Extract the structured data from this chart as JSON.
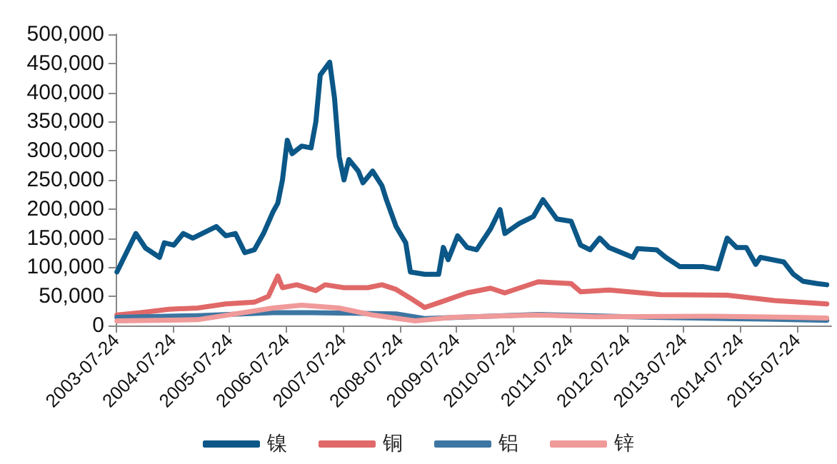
{
  "chart_data": {
    "type": "line",
    "xlim": [
      "2003-07-24",
      "2016-03-01"
    ],
    "ylim": [
      0,
      500000
    ],
    "xticks": [
      "2003-07-24",
      "2004-07-24",
      "2005-07-24",
      "2006-07-24",
      "2007-07-24",
      "2008-07-24",
      "2009-07-24",
      "2010-07-24",
      "2011-07-24",
      "2012-07-24",
      "2013-07-24",
      "2014-07-24",
      "2015-07-24"
    ],
    "yticks": [
      0,
      {
        "value": 50000,
        "label": "50,000"
      },
      {
        "value": 100000,
        "label": "100,000"
      },
      {
        "value": 150000,
        "label": "150,000"
      },
      {
        "value": 200000,
        "label": "200,000"
      },
      {
        "value": 250000,
        "label": "250,000"
      },
      {
        "value": 300000,
        "label": "300,000"
      },
      {
        "value": 350000,
        "label": "350,000"
      },
      {
        "value": 400000,
        "label": "400,000"
      },
      {
        "value": 450000,
        "label": "450,000"
      },
      {
        "value": 500000,
        "label": "500,000"
      }
    ],
    "grid": false,
    "legend": "bottom",
    "marker": "none",
    "line_style": "solid",
    "series": [
      {
        "name": "镍",
        "color": "#0b5787",
        "x": [
          "2003-08",
          "2003-12",
          "2004-02",
          "2004-05",
          "2004-06",
          "2004-08",
          "2004-10",
          "2004-12",
          "2005-05",
          "2005-07",
          "2005-09",
          "2005-11",
          "2006-01",
          "2006-03",
          "2006-05",
          "2006-06",
          "2006-07",
          "2006-08",
          "2006-09",
          "2006-11",
          "2007-01",
          "2007-02",
          "2007-03",
          "2007-05",
          "2007-06",
          "2007-07",
          "2007-08",
          "2007-09",
          "2007-11",
          "2007-12",
          "2008-02",
          "2008-04",
          "2008-05",
          "2008-07",
          "2008-09",
          "2008-10",
          "2009-01",
          "2009-04",
          "2009-05",
          "2009-06",
          "2009-08",
          "2009-10",
          "2009-12",
          "2010-03",
          "2010-05",
          "2010-06",
          "2010-09",
          "2010-12",
          "2011-02",
          "2011-05",
          "2011-08",
          "2011-10",
          "2011-12",
          "2012-02",
          "2012-04",
          "2012-09",
          "2012-10",
          "2013-02",
          "2013-04",
          "2013-07",
          "2013-12",
          "2014-03",
          "2014-05",
          "2014-07",
          "2014-09",
          "2014-11",
          "2014-12",
          "2015-05",
          "2015-07",
          "2015-09",
          "2015-12",
          "2016-02"
        ],
        "values": [
          92000,
          158000,
          133000,
          117000,
          142000,
          138000,
          158000,
          150000,
          170000,
          154000,
          158000,
          125000,
          130000,
          158000,
          195000,
          210000,
          250000,
          318000,
          295000,
          308000,
          305000,
          350000,
          430000,
          452000,
          390000,
          290000,
          250000,
          285000,
          265000,
          245000,
          265000,
          240000,
          215000,
          170000,
          142000,
          92000,
          88000,
          88000,
          134000,
          113000,
          154000,
          134000,
          130000,
          166000,
          199000,
          158000,
          175000,
          187000,
          216000,
          183000,
          179000,
          138000,
          130000,
          150000,
          134000,
          117000,
          132000,
          130000,
          117000,
          101000,
          101000,
          97000,
          150000,
          134000,
          134000,
          105000,
          117000,
          109000,
          88000,
          76000,
          72000,
          70000
        ]
      },
      {
        "name": "铜",
        "color": "#e06868",
        "x": [
          "2003-08",
          "2004-01",
          "2004-07",
          "2005-01",
          "2005-07",
          "2006-01",
          "2006-04",
          "2006-06",
          "2006-07",
          "2006-10",
          "2007-02",
          "2007-04",
          "2007-08",
          "2008-01",
          "2008-04",
          "2008-07",
          "2008-10",
          "2009-01",
          "2009-04",
          "2009-10",
          "2010-03",
          "2010-06",
          "2011-01",
          "2011-08",
          "2011-10",
          "2012-04",
          "2013-03",
          "2014-05",
          "2015-03",
          "2016-02"
        ],
        "values": [
          18000,
          22000,
          28000,
          30000,
          37000,
          40000,
          50000,
          85000,
          65000,
          70000,
          60000,
          70000,
          65000,
          65000,
          70000,
          62000,
          47000,
          31000,
          39000,
          56000,
          64000,
          56000,
          75000,
          72000,
          58000,
          61000,
          53000,
          52000,
          43000,
          37000
        ]
      },
      {
        "name": "铝",
        "color": "#3d76a2",
        "x": [
          "2003-08",
          "2005-01",
          "2006-05",
          "2007-01",
          "2008-07",
          "2009-01",
          "2011-01",
          "2013-01",
          "2015-01",
          "2016-02"
        ],
        "values": [
          14000,
          17000,
          22000,
          22000,
          20000,
          12000,
          19000,
          14000,
          11000,
          9000
        ]
      },
      {
        "name": "锌",
        "color": "#f09a9a",
        "x": [
          "2003-08",
          "2005-01",
          "2006-05",
          "2006-11",
          "2007-07",
          "2008-02",
          "2008-11",
          "2009-07",
          "2010-07",
          "2011-01",
          "2012-01",
          "2014-01",
          "2015-07",
          "2016-02"
        ],
        "values": [
          8000,
          10000,
          30000,
          35000,
          30000,
          18000,
          8000,
          14000,
          17000,
          18000,
          15000,
          16000,
          14000,
          13000
        ]
      }
    ]
  }
}
